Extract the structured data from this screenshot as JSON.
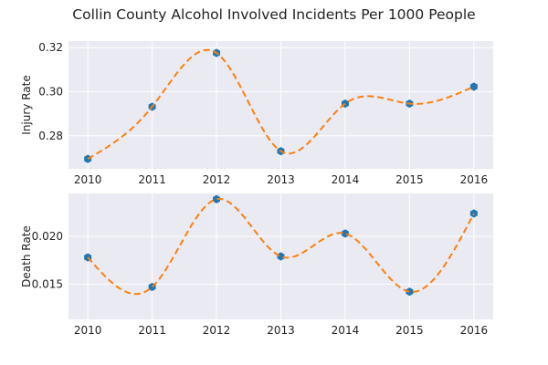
{
  "chart_data": {
    "title": "Collin County Alcohol Involved Incidents Per 1000 People",
    "colors": {
      "background": "#eaeaf2",
      "grid": "#ffffff",
      "marker": "#1f77b4",
      "curve": "#ff7f0e"
    },
    "subplots": [
      {
        "type": "line",
        "ylabel": "Injury Rate",
        "x": [
          2010,
          2011,
          2012,
          2013,
          2014,
          2015,
          2016
        ],
        "xticks": [
          "2010",
          "2011",
          "2012",
          "2013",
          "2014",
          "2015",
          "2016"
        ],
        "xlim": [
          2009.7,
          2016.3
        ],
        "ylim": [
          0.265,
          0.323
        ],
        "yticks": [
          0.28,
          0.3,
          0.32
        ],
        "yticklabels": [
          "0.28",
          "0.30",
          "0.32"
        ],
        "values": [
          0.2695,
          0.2932,
          0.3176,
          0.273,
          0.2946,
          0.2946,
          0.3023
        ],
        "grid": true,
        "markers": "hexagon",
        "curve_style": "dashed smooth interpolation"
      },
      {
        "type": "line",
        "ylabel": "Death Rate",
        "x": [
          2010,
          2011,
          2012,
          2013,
          2014,
          2015,
          2016
        ],
        "xticks": [
          "2010",
          "2011",
          "2012",
          "2013",
          "2014",
          "2015",
          "2016"
        ],
        "xlim": [
          2009.7,
          2016.3
        ],
        "ylim": [
          0.0113,
          0.0245
        ],
        "yticks": [
          0.015,
          0.02
        ],
        "yticklabels": [
          "0.015",
          "0.020"
        ],
        "values": [
          0.0178,
          0.0147,
          0.0239,
          0.0179,
          0.0203,
          0.0142,
          0.0224
        ],
        "grid": true,
        "markers": "hexagon",
        "curve_style": "dashed smooth interpolation"
      }
    ]
  }
}
